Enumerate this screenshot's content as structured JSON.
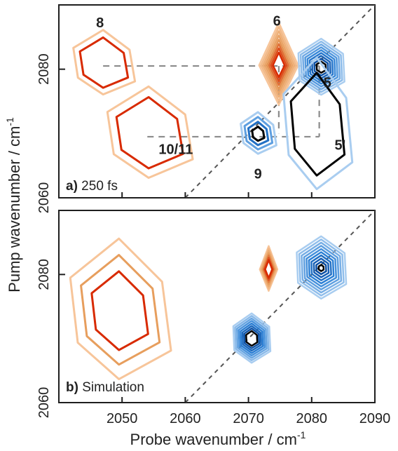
{
  "figure": {
    "xlabel": "Probe wavenumber / cm",
    "xlabel_superscript": "-1",
    "ylabel": "Pump wavenumber / cm",
    "ylabel_superscript": "-1",
    "x_ticks": [
      "2050",
      "2060",
      "2070",
      "2080",
      "2090"
    ],
    "y_ticks_top": [
      "2060",
      "2080"
    ],
    "y_ticks_bottom": [
      "2060",
      "2080"
    ]
  },
  "chart_data": [
    {
      "type": "contour",
      "panel_label_letter": "a)",
      "panel_label_text": " 250 fs",
      "xlim": [
        2040,
        2090
      ],
      "ylim": [
        2060,
        2090
      ],
      "x_ticks": [
        2050,
        2060,
        2070,
        2080,
        2090
      ],
      "y_ticks": [
        2060,
        2080
      ],
      "diagonal": true,
      "annotations": [
        {
          "text": "8",
          "x": 2046.5,
          "y": 2086.5
        },
        {
          "text": "6",
          "x": 2074.5,
          "y": 2086.8
        },
        {
          "text": "5",
          "x": 2082.5,
          "y": 2077.2
        },
        {
          "text": "10/11",
          "x": 2058.5,
          "y": 2066.8
        },
        {
          "text": "5'",
          "x": 2084.5,
          "y": 2067.5
        },
        {
          "text": "9",
          "x": 2071.5,
          "y": 2063.0
        }
      ],
      "guide_lines": [
        {
          "x1": 2047,
          "y1": 2080.5,
          "x2": 2081.2,
          "y2": 2080.5
        },
        {
          "x1": 2074.8,
          "y1": 2080.5,
          "x2": 2074.8,
          "y2": 2070.0
        },
        {
          "x1": 2081.2,
          "y1": 2080.5,
          "x2": 2081.2,
          "y2": 2069.5
        },
        {
          "x1": 2054,
          "y1": 2069.5,
          "x2": 2081.2,
          "y2": 2069.5
        }
      ],
      "peaks": [
        {
          "name": "8",
          "sign": "positive",
          "x": 2047.0,
          "y": 2080.8,
          "rx": 5.2,
          "ry": 4.8,
          "levels": 2
        },
        {
          "name": "10/11",
          "sign": "positive",
          "x": 2054.2,
          "y": 2069.8,
          "rx": 7.2,
          "ry": 6.8,
          "levels": 2
        },
        {
          "name": "6",
          "sign": "positive",
          "x": 2074.8,
          "y": 2080.6,
          "rx": 3.1,
          "ry": 6.4,
          "levels": 8
        },
        {
          "name": "5",
          "sign": "negative",
          "x": 2081.5,
          "y": 2080.3,
          "rx": 4.1,
          "ry": 4.3,
          "levels": 9
        },
        {
          "name": "5'",
          "sign": "negative",
          "x": 2080.8,
          "y": 2071.0,
          "rx": 5.8,
          "ry": 9.8,
          "levels": 2
        },
        {
          "name": "9",
          "sign": "negative",
          "x": 2071.5,
          "y": 2069.9,
          "rx": 3.0,
          "ry": 3.1,
          "levels": 4
        }
      ]
    },
    {
      "type": "contour",
      "panel_label_letter": "b)",
      "panel_label_text": " Simulation",
      "xlim": [
        2040,
        2090
      ],
      "ylim": [
        2060,
        2090
      ],
      "x_ticks": [
        2050,
        2060,
        2070,
        2080,
        2090
      ],
      "y_ticks": [
        2060,
        2080
      ],
      "diagonal": true,
      "annotations": [],
      "guide_lines": [],
      "peaks": [
        {
          "name": "simulated-lower-left",
          "sign": "positive",
          "x": 2049.5,
          "y": 2074.0,
          "rx": 8.5,
          "ry": 10.5,
          "levels": 3
        },
        {
          "name": "simulated-orange-diamond",
          "sign": "positive",
          "x": 2073.2,
          "y": 2080.8,
          "rx": 1.4,
          "ry": 3.5,
          "levels": 7
        },
        {
          "name": "simulated-blue-hex",
          "sign": "negative",
          "x": 2081.5,
          "y": 2081.0,
          "rx": 4.4,
          "ry": 4.8,
          "levels": 10
        },
        {
          "name": "simulated-blue-diagonal",
          "sign": "negative",
          "x": 2070.5,
          "y": 2070.0,
          "rx": 3.3,
          "ry": 3.8,
          "levels": 8
        }
      ]
    }
  ]
}
